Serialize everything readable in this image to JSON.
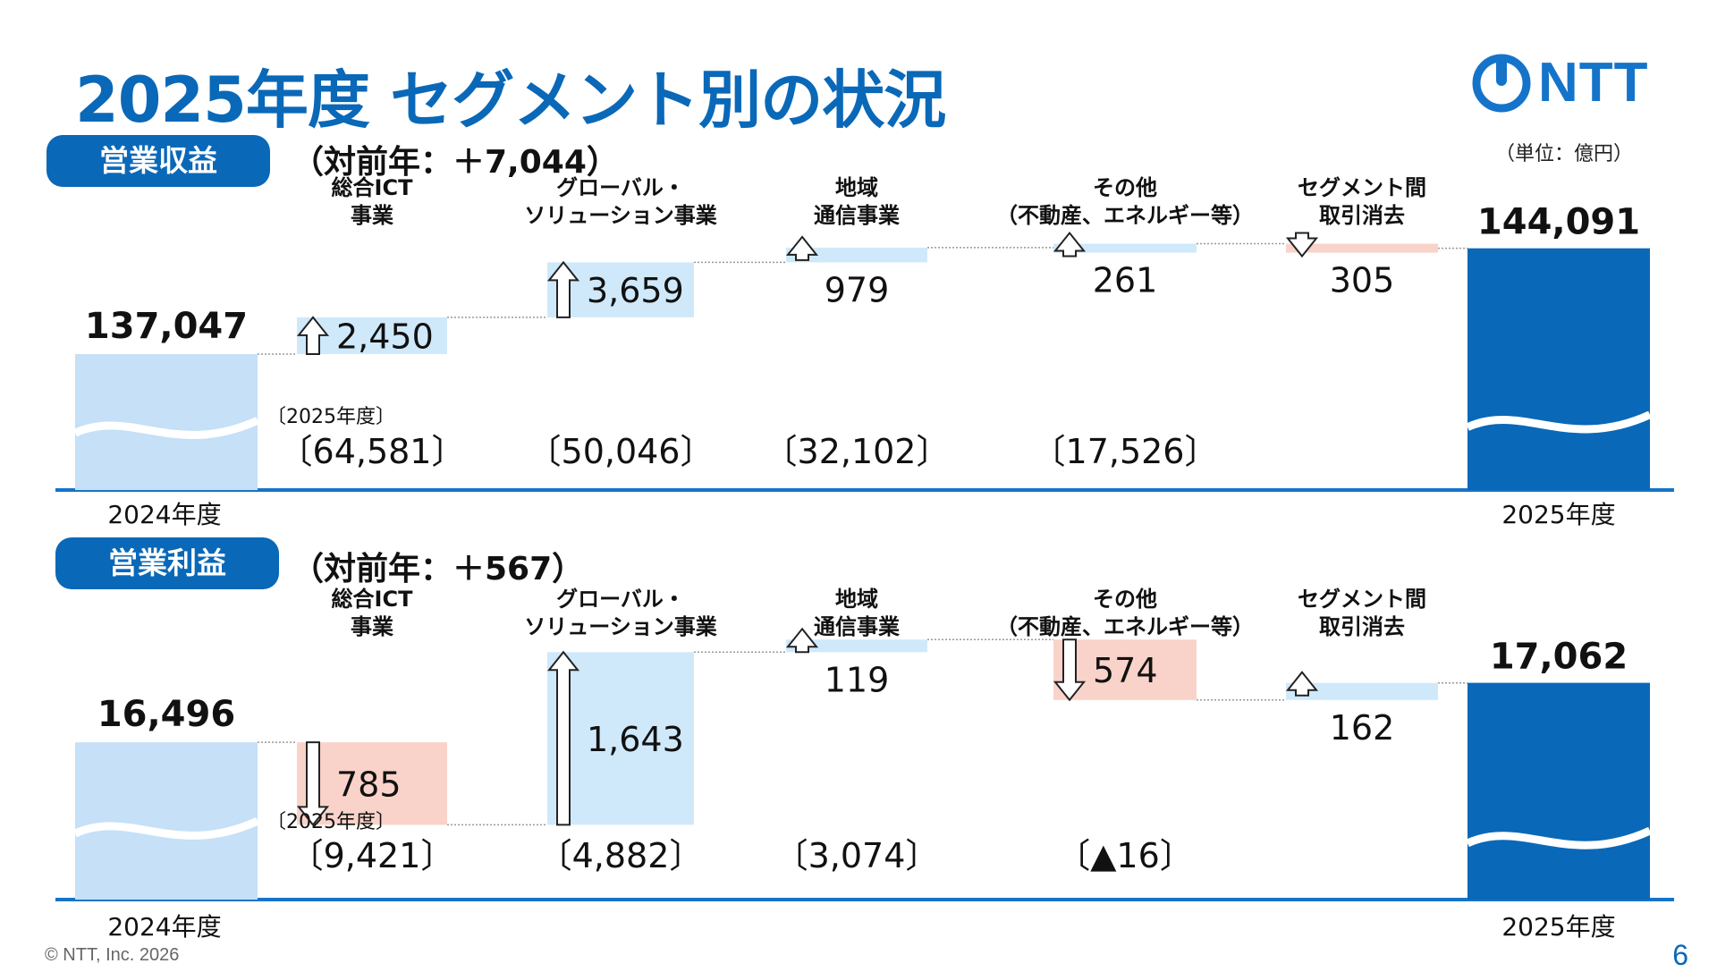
{
  "title": "2025年度 セグメント別の状況",
  "logo_text": "NTT",
  "unit": "（単位：億円）",
  "footer": {
    "copyright": "© NTT, Inc.  2026",
    "page": "6"
  },
  "colors": {
    "brand_blue": "#0a68b8",
    "baseline_blue": "#1574c9",
    "prior_bar": "#c5e0f7",
    "increase": "#cfe9fb",
    "decrease": "#f9d3c9"
  },
  "sections": [
    {
      "label": "営業収益",
      "yoy_text": "（対前年：＋7,044）",
      "segment_sales_note": "〔2025年度〕"
    },
    {
      "label": "営業利益",
      "yoy_text": "（対前年：＋567）",
      "segment_sales_note": "〔2025年度〕"
    }
  ],
  "chart_data": [
    {
      "type": "bar",
      "subtype": "waterfall",
      "title": "営業収益",
      "categories": [
        "2024年度",
        "総合ICT\n事業",
        "グローバル・\nソリューション事業",
        "地域\n通信事業",
        "その他\n（不動産、エネルギー等）",
        "セグメント間\n取引消去",
        "2025年度"
      ],
      "values": [
        137047,
        2450,
        3659,
        979,
        261,
        -305,
        144091
      ],
      "value_labels": [
        "137,047",
        "2,450",
        "3,659",
        "979",
        "261",
        "305",
        "144,091"
      ],
      "measures": [
        "absolute",
        "relative",
        "relative",
        "relative",
        "relative",
        "relative",
        "total"
      ],
      "segment_totals_2025": [
        "",
        "〔64,581〕",
        "〔50,046〕",
        "〔32,102〕",
        "〔17,526〕",
        "",
        ""
      ],
      "direction_icons": [
        "",
        "arrow-up-icon",
        "arrow-up-icon",
        "arrow-up-icon",
        "arrow-up-icon",
        "arrow-down-icon",
        ""
      ]
    },
    {
      "type": "bar",
      "subtype": "waterfall",
      "title": "営業利益",
      "categories": [
        "2024年度",
        "総合ICT\n事業",
        "グローバル・\nソリューション事業",
        "地域\n通信事業",
        "その他\n（不動産、エネルギー等）",
        "セグメント間\n取引消去",
        "2025年度"
      ],
      "values": [
        16496,
        -785,
        1643,
        119,
        -574,
        162,
        17062
      ],
      "value_labels": [
        "16,496",
        "785",
        "1,643",
        "119",
        "574",
        "162",
        "17,062"
      ],
      "measures": [
        "absolute",
        "relative",
        "relative",
        "relative",
        "relative",
        "relative",
        "total"
      ],
      "segment_totals_2025": [
        "",
        "〔9,421〕",
        "〔4,882〕",
        "〔3,074〕",
        "〔▲16〕",
        "",
        ""
      ],
      "direction_icons": [
        "",
        "arrow-down-icon",
        "arrow-up-icon",
        "arrow-up-icon",
        "arrow-down-icon",
        "arrow-up-icon",
        ""
      ]
    }
  ]
}
